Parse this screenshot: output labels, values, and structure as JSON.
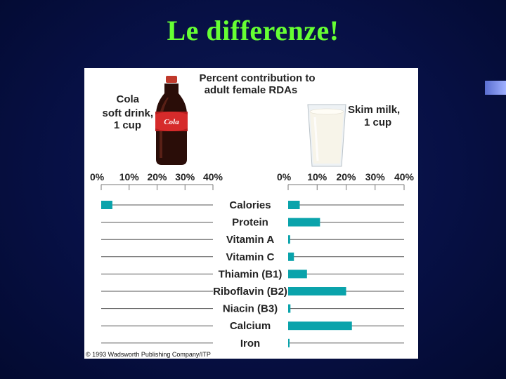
{
  "slide": {
    "title": "Le differenze!"
  },
  "colors": {
    "background": "#071045",
    "title": "#66ff33",
    "bar": "#0aa3ab",
    "panel": "#ffffff"
  },
  "chart_data": {
    "type": "bar",
    "title_line1": "Percent contribution to",
    "title_line2": "adult female RDAs",
    "left_label": [
      "Cola",
      "soft drink,",
      "1 cup"
    ],
    "right_label": [
      "Skim milk,",
      "1 cup"
    ],
    "bottle_label": "Cola",
    "copyright": "© 1993 Wadsworth Publishing Company/ITP",
    "categories": [
      "Calories",
      "Protein",
      "Vitamin A",
      "Vitamin C",
      "Thiamin (B1)",
      "Riboflavin (B2)",
      "Niacin (B3)",
      "Calcium",
      "Iron"
    ],
    "xlim": [
      0,
      40
    ],
    "ticks": [
      "0%",
      "10%",
      "20%",
      "30%",
      "40%"
    ],
    "series": [
      {
        "name": "Cola soft drink, 1 cup",
        "values": [
          4,
          0,
          0,
          0,
          0,
          0,
          0,
          0,
          0
        ]
      },
      {
        "name": "Skim milk, 1 cup",
        "values": [
          4,
          11,
          0.7,
          2,
          6.5,
          20,
          0.8,
          22,
          0.3
        ]
      }
    ]
  }
}
